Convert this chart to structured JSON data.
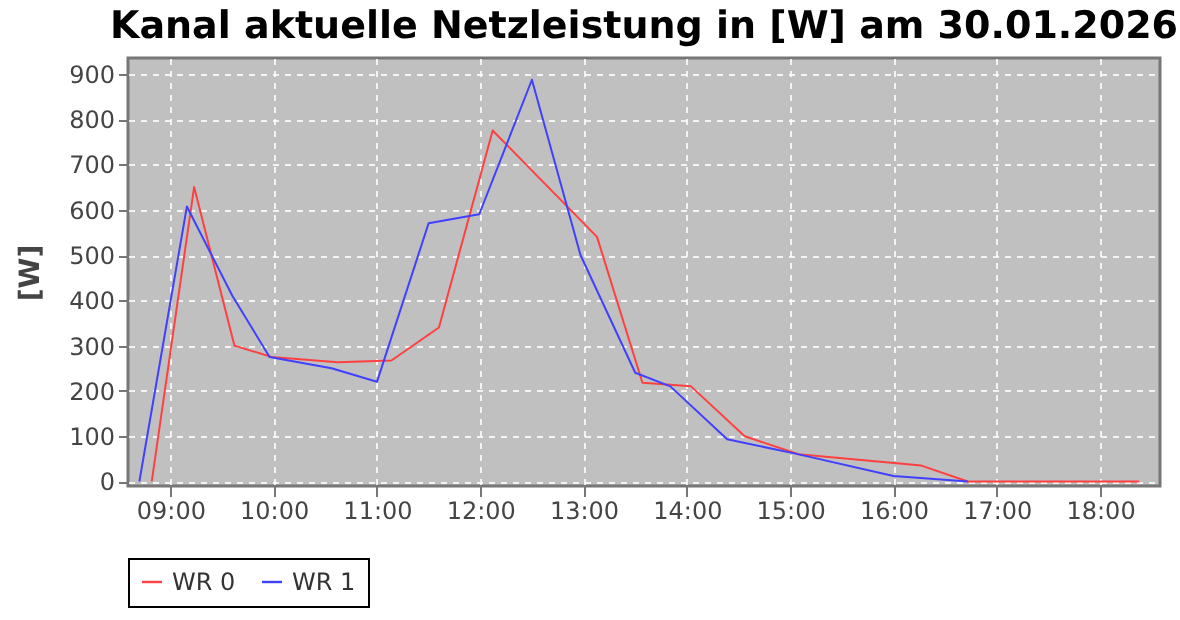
{
  "chart_data": {
    "type": "line",
    "title": "Kanal aktuelle Netzleistung in [W] am 30.01.2026",
    "ylabel": "[W]",
    "xlim": [
      8.59,
      18.58
    ],
    "ylim": [
      -10,
      935
    ],
    "xticks": [
      {
        "value": 9,
        "label": "09:00"
      },
      {
        "value": 10,
        "label": "10:00"
      },
      {
        "value": 11,
        "label": "11:00"
      },
      {
        "value": 12,
        "label": "12:00"
      },
      {
        "value": 13,
        "label": "13:00"
      },
      {
        "value": 14,
        "label": "14:00"
      },
      {
        "value": 15,
        "label": "15:00"
      },
      {
        "value": 16,
        "label": "16:00"
      },
      {
        "value": 17,
        "label": "17:00"
      },
      {
        "value": 18,
        "label": "18:00"
      }
    ],
    "yticks": [
      0,
      100,
      200,
      300,
      400,
      500,
      600,
      700,
      800,
      900
    ],
    "grid": true,
    "legend": "bottom",
    "marker": "none",
    "line_style": "solid",
    "series": [
      {
        "name": "WR 0",
        "color": "#ff4040",
        "x": [
          8.82,
          9.23,
          9.62,
          9.98,
          10.62,
          11.14,
          11.6,
          12.12,
          13.13,
          13.57,
          14.04,
          14.56,
          15.08,
          16.27,
          16.72,
          18.38
        ],
        "values": [
          0,
          650,
          300,
          275,
          263,
          267,
          340,
          775,
          540,
          218,
          210,
          100,
          60,
          35,
          0,
          0
        ]
      },
      {
        "name": "WR 1",
        "color": "#4040ff",
        "x": [
          8.7,
          9.16,
          9.6,
          9.96,
          10.56,
          11.0,
          11.5,
          11.99,
          12.5,
          12.97,
          13.5,
          13.84,
          14.39,
          15.04,
          16.0,
          16.72
        ],
        "values": [
          0,
          607,
          410,
          275,
          250,
          220,
          570,
          590,
          887,
          500,
          240,
          210,
          93,
          62,
          12,
          0
        ]
      }
    ]
  }
}
